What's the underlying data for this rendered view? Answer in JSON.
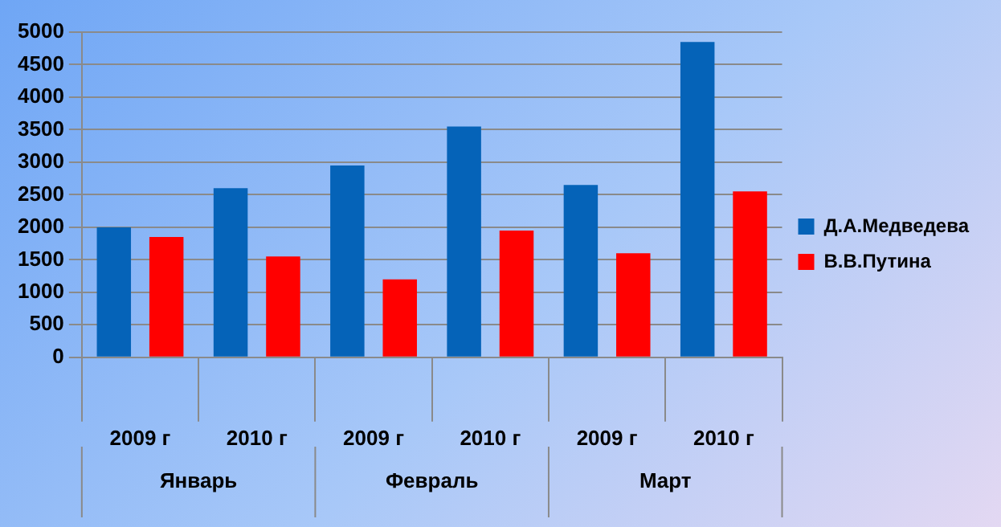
{
  "chart_data": {
    "type": "bar",
    "categories": [
      "2009 г",
      "2010 г",
      "2009 г",
      "2010 г",
      "2009 г",
      "2010 г"
    ],
    "annotations": [
      "Январь",
      "Февраль",
      "Март"
    ],
    "series": [
      {
        "name": "Д.А.Медведева",
        "color": "#0563b8",
        "values": [
          2000,
          2600,
          2950,
          3550,
          2650,
          4850
        ]
      },
      {
        "name": "В.В.Путина",
        "color": "#ff0000",
        "values": [
          1850,
          1550,
          1200,
          1950,
          1600,
          2550
        ]
      }
    ],
    "ylim": [
      0,
      5000
    ],
    "yticks": [
      0,
      500,
      1000,
      1500,
      2000,
      2500,
      3000,
      3500,
      4000,
      4500,
      5000
    ],
    "grid": "y",
    "legend": "right"
  }
}
